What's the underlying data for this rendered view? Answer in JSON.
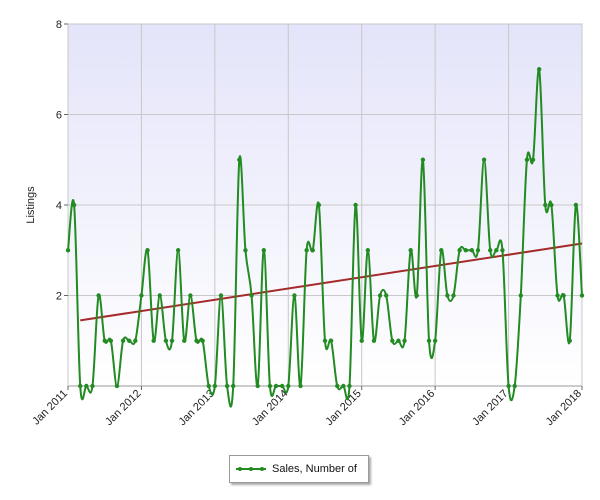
{
  "chart_data": {
    "type": "line",
    "title": "",
    "xlabel": "",
    "ylabel": "Listings",
    "ylim": [
      0,
      8
    ],
    "yticks": [
      "2",
      "4",
      "6",
      "8"
    ],
    "xlim": [
      "2011-01",
      "2018-01"
    ],
    "xticks": [
      "Jan 2011",
      "Jan 2012",
      "Jan 2013",
      "Jan 2014",
      "Jan 2015",
      "Jan 2016",
      "Jan 2017",
      "Jan 2018"
    ],
    "grid": true,
    "legend_position": "bottom-center",
    "series": [
      {
        "name": "Sales, Number of",
        "color": "#228B22",
        "x": [
          "2011-01",
          "2011-02",
          "2011-03",
          "2011-04",
          "2011-05",
          "2011-06",
          "2011-07",
          "2011-08",
          "2011-09",
          "2011-10",
          "2011-11",
          "2011-12",
          "2012-01",
          "2012-02",
          "2012-03",
          "2012-04",
          "2012-05",
          "2012-06",
          "2012-07",
          "2012-08",
          "2012-09",
          "2012-10",
          "2012-11",
          "2012-12",
          "2013-01",
          "2013-02",
          "2013-03",
          "2013-04",
          "2013-05",
          "2013-06",
          "2013-07",
          "2013-08",
          "2013-09",
          "2013-10",
          "2013-11",
          "2013-12",
          "2014-01",
          "2014-02",
          "2014-03",
          "2014-04",
          "2014-05",
          "2014-06",
          "2014-07",
          "2014-08",
          "2014-09",
          "2014-10",
          "2014-11",
          "2014-12",
          "2015-01",
          "2015-02",
          "2015-03",
          "2015-04",
          "2015-05",
          "2015-06",
          "2015-07",
          "2015-08",
          "2015-09",
          "2015-10",
          "2015-11",
          "2015-12",
          "2016-01",
          "2016-02",
          "2016-03",
          "2016-04",
          "2016-05",
          "2016-06",
          "2016-07",
          "2016-08",
          "2016-09",
          "2016-10",
          "2016-11",
          "2016-12",
          "2017-01",
          "2017-02",
          "2017-03",
          "2017-04",
          "2017-05",
          "2017-06",
          "2017-07",
          "2017-08",
          "2017-09",
          "2017-10",
          "2017-11",
          "2017-12",
          "2018-01"
        ],
        "values": [
          3,
          4,
          0,
          0,
          0,
          2,
          1,
          1,
          0,
          1,
          1,
          1,
          2,
          3,
          1,
          2,
          1,
          1,
          3,
          1,
          2,
          1,
          1,
          0,
          0,
          2,
          0,
          0,
          5,
          3,
          2,
          0,
          3,
          0,
          0,
          0,
          0,
          2,
          0,
          3,
          3,
          4,
          1,
          1,
          0,
          0,
          0,
          4,
          1,
          3,
          1,
          2,
          2,
          1,
          1,
          1,
          3,
          2,
          5,
          1,
          1,
          3,
          2,
          2,
          3,
          3,
          3,
          3,
          5,
          3,
          3,
          3,
          0,
          0,
          2,
          5,
          5,
          7,
          4,
          4,
          2,
          2,
          1,
          4,
          2
        ]
      },
      {
        "name": "",
        "type": "trendline",
        "color": "#A52A2A",
        "x": [
          "2011-03",
          "2018-01"
        ],
        "values": [
          1.45,
          3.15
        ]
      }
    ]
  }
}
